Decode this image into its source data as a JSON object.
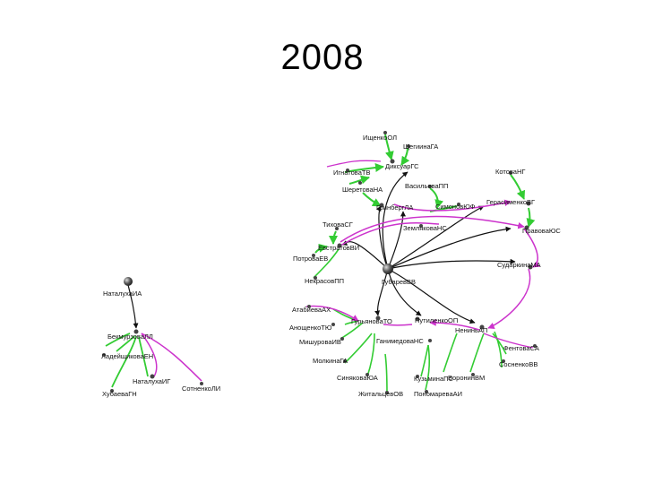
{
  "slide": {
    "title": "2008"
  },
  "colors": {
    "green": "#33cc33",
    "magenta": "#cc33cc",
    "black": "#111111",
    "node": "#555555"
  },
  "nodes": {
    "ishchenko": "ИщенкоОЛ",
    "shchigin": "ЩегиинаГА",
    "diksuar": "ДиксуарГС",
    "ignatova": "ИгнатоваТВ",
    "sheretova": "ШеретоваНА",
    "kotova": "КотоваНГ",
    "vasilieva": "ВасильеваПП",
    "gerasimenko": "ГерасименкоВГ",
    "grinberg": "ГринбергЛА",
    "simonov": "СимоновЮФ",
    "pravova": "ПравоваЮС",
    "tikhova": "ТиховаСГ",
    "zemlyakova": "ЗемляковаНС",
    "evstratova": "ЕвстратовВИ",
    "potrova": "ПотроваЕВ",
    "sudarkina": "СударкинаМА",
    "nekrasov": "НекрасовПП",
    "gubarev": "ГубаревВВ",
    "natalukha_ia": "НаталухаИА",
    "atabieva": "АтабиеваАХ",
    "guryanova": "ГурьяноваТО",
    "putilenko": "ПутиленкоОП",
    "anoshchenko": "АнощенкоТЮ",
    "nenikh": "НениньАП",
    "mishurova": "МишуроваИВ",
    "ganimedova": "ГанимедоваНС",
    "fentova": "ФентоваСА",
    "molkina": "МолкинаГА",
    "sosnenko": "СосненкоВВ",
    "bekmurzova": "БекмурзоваЛЛ",
    "ladeishchikova": "ЛадейщиковаЕН",
    "voronin": "ВоронинВМ",
    "sinyakova": "СиняковаЮА",
    "kuzmina": "КузьминаПС",
    "natalukha_ig": "НаталухаИГ",
    "sotnenko": "СотненкоЛИ",
    "zhitaltsev": "ЖитальцевОВ",
    "ponomareva": "ПономареваАИ",
    "khubaeva": "ХубаеваГН"
  }
}
